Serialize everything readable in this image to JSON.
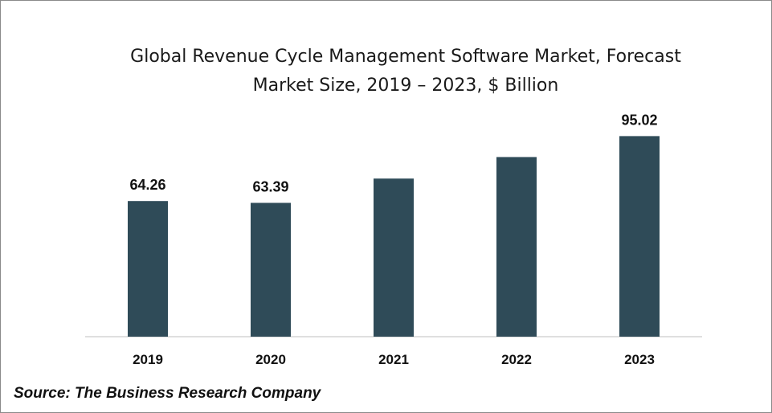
{
  "chart_data": {
    "type": "bar",
    "title_lines": [
      "Global Revenue Cycle Management Software Market, Forecast",
      "Market Size, 2019 – 2023, $ Billion"
    ],
    "categories": [
      "2019",
      "2020",
      "2021",
      "2022",
      "2023"
    ],
    "values": [
      64.26,
      63.39,
      74.9,
      85.1,
      95.02
    ],
    "data_labels": [
      "64.26",
      "63.39",
      "",
      "",
      "95.02"
    ],
    "ylim": [
      0,
      100
    ],
    "grid": false,
    "legend": "none",
    "bar_color": "#2f4b58",
    "axis_color": "#bfbfbf"
  },
  "source": "Source: The Business Research Company"
}
